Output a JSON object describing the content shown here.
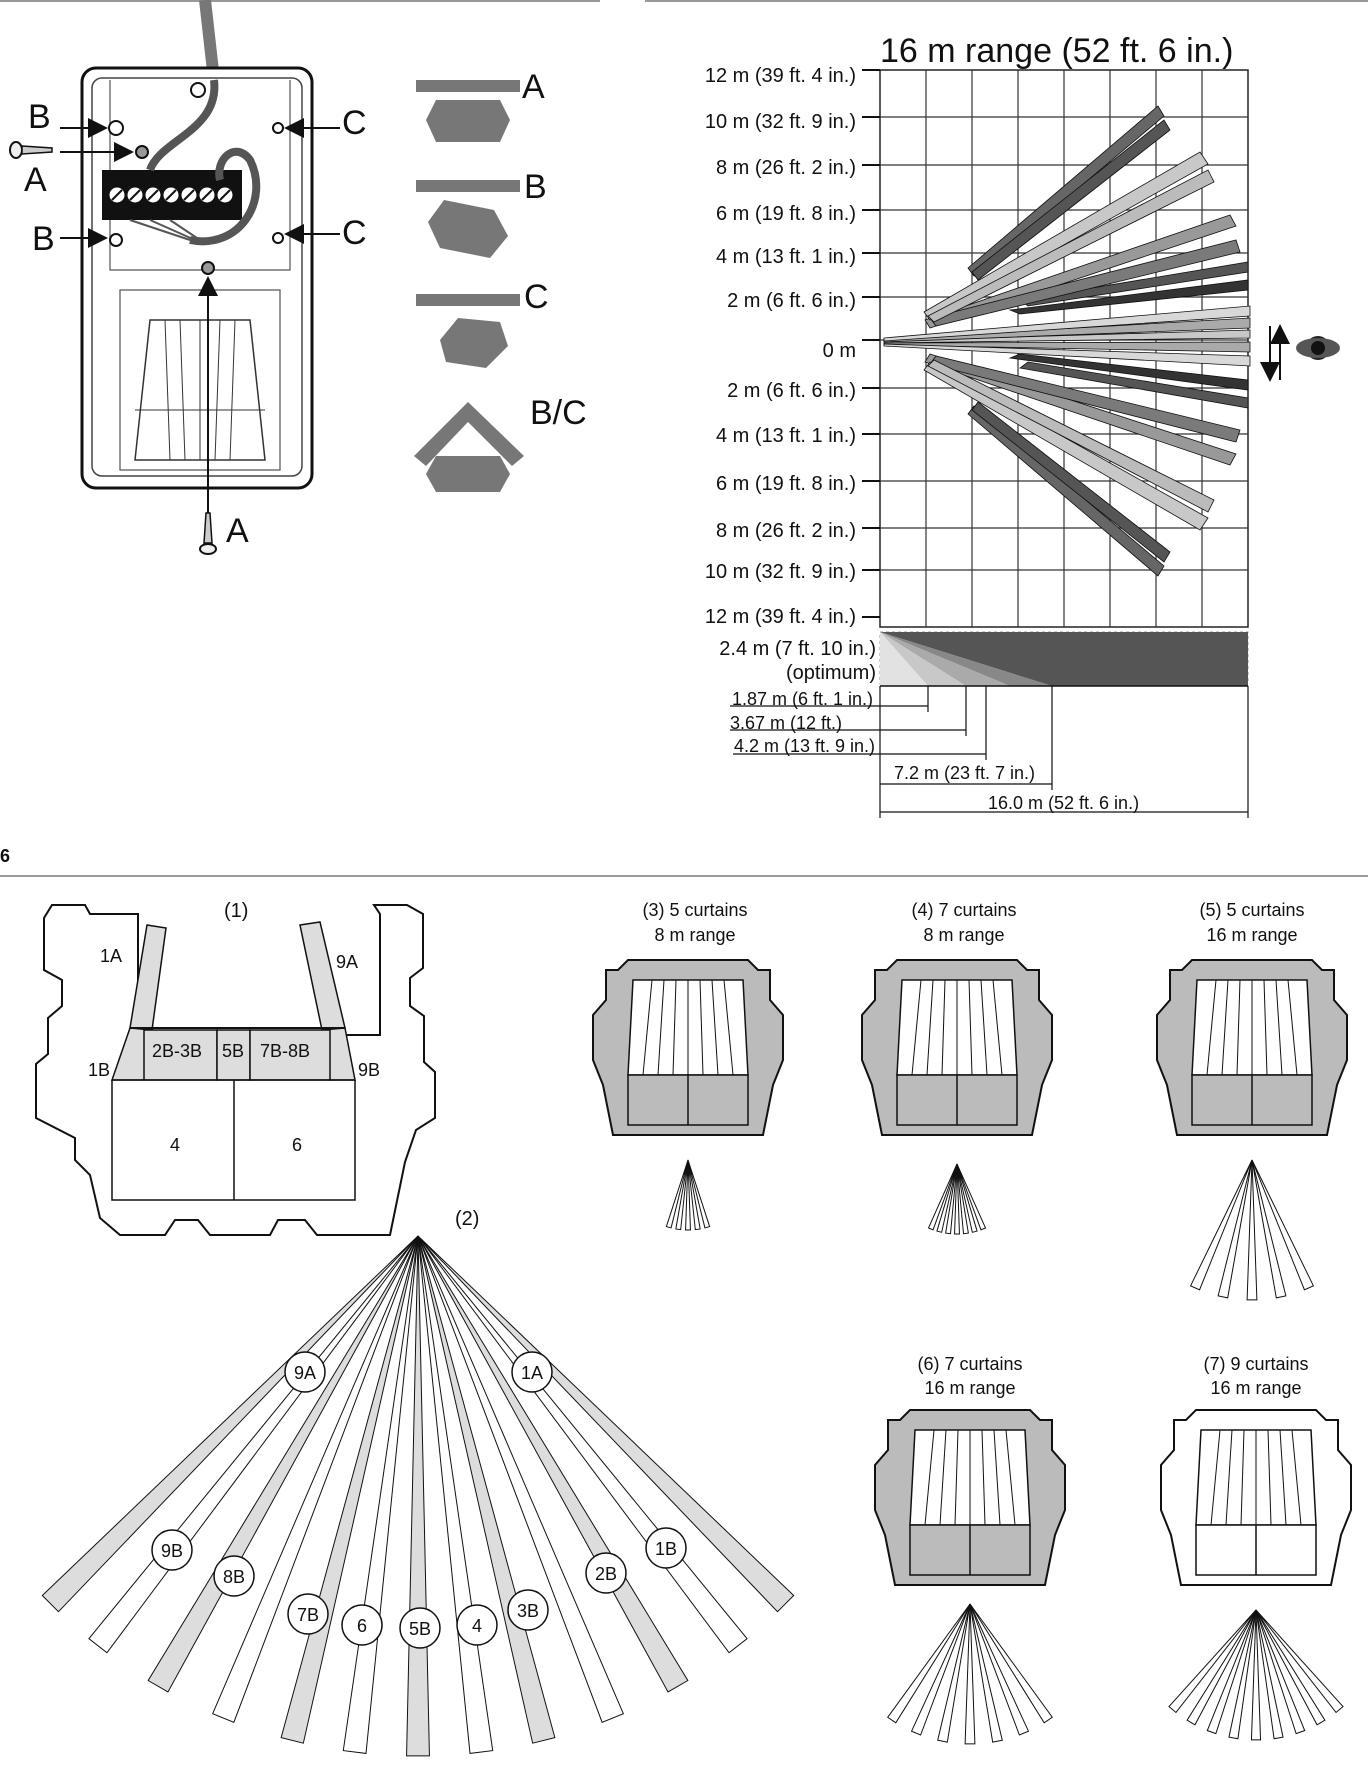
{
  "fig_number": "6",
  "mounting": {
    "labels": {
      "A": "A",
      "B": "B",
      "C": "C",
      "BC": "B/C"
    }
  },
  "coverage": {
    "title": "16 m range (52 ft. 6 in.)",
    "y_labels": [
      "12 m (39 ft. 4 in.)",
      "10 m (32 ft. 9 in.)",
      "8 m (26 ft. 2 in.)",
      "6 m (19 ft. 8 in.)",
      "4 m (13 ft. 1 in.)",
      "2 m (6 ft. 6 in.)",
      "0 m",
      "2 m (6 ft. 6 in.)",
      "4 m (13 ft. 1 in.)",
      "6 m (19 ft. 8 in.)",
      "8 m (26 ft. 2 in.)",
      "10 m (32 ft. 9 in.)",
      "12 m (39 ft. 4 in.)"
    ],
    "height_label": "2.4 m (7 ft. 10 in.)",
    "height_note": "(optimum)",
    "distances": [
      "1.87 m (6 ft. 1 in.)",
      "3.67 m (12 ft.)",
      "4.2 m (13 ft. 9 in.)",
      "7.2 m (23 ft. 7 in.)",
      "16.0 m (52 ft. 6 in.)"
    ]
  },
  "lens": {
    "panel1_label": "(1)",
    "panel2_label": "(2)",
    "zones": [
      "1A",
      "9A",
      "1B",
      "2B-3B",
      "5B",
      "7B-8B",
      "9B",
      "4",
      "6"
    ],
    "fan_labels": [
      "9A",
      "1A",
      "9B",
      "8B",
      "7B",
      "6",
      "5B",
      "4",
      "3B",
      "2B",
      "1B"
    ]
  },
  "configs": [
    {
      "line1": "(3) 5 curtains",
      "line2": "8 m range"
    },
    {
      "line1": "(4) 7 curtains",
      "line2": "8 m range"
    },
    {
      "line1": "(5) 5 curtains",
      "line2": "16 m range"
    },
    {
      "line1": "(6) 7 curtains",
      "line2": "16 m range"
    },
    {
      "line1": "(7) 9 curtains",
      "line2": "16 m range"
    }
  ]
}
